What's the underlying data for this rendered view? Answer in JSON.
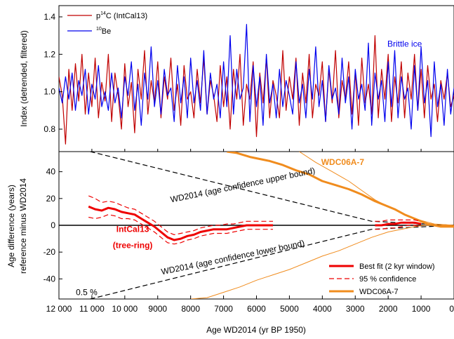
{
  "chart_data": [
    {
      "type": "line",
      "panel": "top",
      "ylabel": "Index (detrended, filtered)",
      "ylim": [
        0.68,
        1.46
      ],
      "yticks": [
        0.8,
        1.0,
        1.2,
        1.4
      ],
      "ytick_labels": [
        "0.8",
        "1.0",
        "1.2",
        "1.4"
      ],
      "xlim": [
        12000,
        0
      ],
      "legend": {
        "position": "top-left",
        "entries": [
          {
            "pre": "p",
            "sup": "14",
            "post": "C (IntCal13)",
            "color": "#c00000"
          },
          {
            "pre": "",
            "sup": "10",
            "post": "Be",
            "color": "#0000ee"
          }
        ]
      },
      "annotation": {
        "text": "Brittle ice",
        "color": "#0000ee",
        "x": 1500,
        "y": 1.24
      },
      "series": [
        {
          "name": "p14C (IntCal13)",
          "color": "#c00000",
          "x": [
            12000,
            11900,
            11800,
            11700,
            11600,
            11500,
            11400,
            11300,
            11200,
            11100,
            11000,
            10900,
            10800,
            10700,
            10600,
            10500,
            10400,
            10300,
            10200,
            10100,
            10000,
            9900,
            9800,
            9700,
            9600,
            9500,
            9400,
            9300,
            9200,
            9100,
            9000,
            8900,
            8800,
            8700,
            8600,
            8500,
            8400,
            8300,
            8200,
            8100,
            8000,
            7900,
            7800,
            7700,
            7600,
            7500,
            7400,
            7300,
            7200,
            7100,
            7000,
            6900,
            6800,
            6700,
            6600,
            6500,
            6400,
            6300,
            6200,
            6100,
            6000,
            5900,
            5800,
            5700,
            5600,
            5500,
            5400,
            5300,
            5200,
            5100,
            5000,
            4900,
            4800,
            4700,
            4600,
            4500,
            4400,
            4300,
            4200,
            4100,
            4000,
            3900,
            3800,
            3700,
            3600,
            3500,
            3400,
            3300,
            3200,
            3100,
            3000,
            2900,
            2800,
            2700,
            2600,
            2500,
            2400,
            2300,
            2200,
            2100,
            2000,
            1900,
            1800,
            1700,
            1600,
            1500,
            1400,
            1300,
            1200,
            1100,
            1000,
            900,
            800,
            700,
            600,
            500,
            400,
            300,
            200,
            100,
            0
          ],
          "values": [
            1.08,
            0.98,
            0.72,
            1.12,
            0.9,
            1.15,
            0.95,
            1.2,
            0.88,
            1.1,
            0.92,
            1.18,
            0.86,
            1.05,
            0.95,
            1.2,
            0.84,
            1.1,
            0.98,
            0.8,
            1.15,
            0.92,
            1.05,
            0.78,
            1.12,
            0.96,
            1.22,
            0.88,
            1.06,
            0.94,
            1.16,
            0.86,
            1.08,
            0.96,
            1.18,
            0.9,
            1.04,
            0.82,
            1.14,
            0.96,
            1.0,
            0.86,
            1.12,
            0.94,
            1.18,
            0.88,
            1.06,
            0.98,
            0.84,
            1.14,
            0.92,
            1.08,
            0.8,
            1.12,
            0.96,
            1.2,
            0.82,
            1.04,
            0.96,
            1.16,
            0.76,
            1.1,
            0.94,
            1.18,
            0.86,
            1.06,
            0.98,
            0.86,
            1.22,
            0.9,
            1.08,
            0.96,
            1.18,
            0.82,
            1.1,
            0.94,
            1.2,
            0.86,
            1.04,
            0.98,
            1.16,
            0.84,
            1.12,
            0.94,
            1.22,
            0.86,
            1.06,
            0.96,
            1.16,
            0.88,
            1.1,
            0.82,
            1.18,
            0.94,
            1.04,
            0.88,
            1.3,
            0.86,
            1.12,
            0.96,
            1.2,
            0.84,
            1.08,
            0.94,
            1.16,
            0.86,
            1.1,
            0.96,
            1.2,
            0.9,
            1.12,
            0.86,
            1.14,
            0.96,
            1.04,
            0.84,
            1.06,
            0.96,
            1.1,
            0.92,
            0.98
          ]
        },
        {
          "name": "10Be",
          "color": "#0000ee",
          "x": [
            12000,
            11900,
            11800,
            11700,
            11600,
            11500,
            11400,
            11300,
            11200,
            11100,
            11000,
            10900,
            10800,
            10700,
            10600,
            10500,
            10400,
            10300,
            10200,
            10100,
            10000,
            9900,
            9800,
            9700,
            9600,
            9500,
            9400,
            9300,
            9200,
            9100,
            9000,
            8900,
            8800,
            8700,
            8600,
            8500,
            8400,
            8300,
            8200,
            8100,
            8000,
            7900,
            7800,
            7700,
            7600,
            7500,
            7400,
            7300,
            7200,
            7100,
            7000,
            6900,
            6800,
            6700,
            6600,
            6500,
            6400,
            6300,
            6200,
            6100,
            6000,
            5900,
            5800,
            5700,
            5600,
            5500,
            5400,
            5300,
            5200,
            5100,
            5000,
            4900,
            4800,
            4700,
            4600,
            4500,
            4400,
            4300,
            4200,
            4100,
            4000,
            3900,
            3800,
            3700,
            3600,
            3500,
            3400,
            3300,
            3200,
            3100,
            3000,
            2900,
            2800,
            2700,
            2600,
            2500,
            2400,
            2300,
            2200,
            2100,
            2000,
            1900,
            1800,
            1700,
            1600,
            1500,
            1400,
            1300,
            1200,
            1100,
            1000,
            900,
            800,
            700,
            600,
            500,
            400,
            300,
            200,
            100,
            0
          ],
          "values": [
            1.02,
            0.94,
            1.08,
            0.96,
            1.1,
            0.9,
            1.06,
            0.98,
            1.12,
            0.88,
            1.04,
            0.96,
            1.14,
            0.92,
            1.0,
            0.9,
            1.1,
            0.94,
            1.02,
            0.86,
            1.08,
            0.98,
            1.16,
            0.9,
            1.04,
            0.82,
            1.1,
            0.96,
            1.24,
            0.92,
            1.06,
            0.88,
            1.12,
            0.98,
            1.02,
            0.84,
            1.14,
            0.94,
            1.08,
            0.86,
            1.18,
            0.94,
            1.06,
            0.9,
            1.22,
            0.88,
            1.1,
            0.96,
            1.04,
            0.86,
            1.16,
            0.92,
            1.3,
            0.88,
            1.12,
            0.96,
            1.02,
            1.36,
            0.84,
            1.14,
            0.92,
            1.08,
            0.82,
            1.2,
            0.94,
            1.04,
            0.86,
            1.12,
            0.92,
            1.06,
            0.98,
            0.88,
            1.16,
            0.94,
            1.04,
            0.86,
            1.12,
            0.96,
            1.24,
            0.92,
            1.06,
            0.84,
            1.14,
            0.96,
            1.02,
            0.88,
            1.18,
            0.94,
            1.08,
            0.8,
            1.12,
            0.96,
            1.04,
            0.9,
            1.26,
            0.82,
            1.1,
            0.96,
            1.06,
            0.84,
            1.16,
            0.92,
            1.22,
            0.86,
            1.08,
            0.96,
            1.02,
            0.8,
            1.14,
            0.9,
            1.24,
            0.94,
            1.06,
            0.76,
            1.16,
            0.92,
            1.04,
            0.82,
            1.12,
            0.88,
            1.02
          ]
        }
      ]
    },
    {
      "type": "line",
      "panel": "bottom",
      "xlabel": "Age WD2014 (yr BP 1950)",
      "ylabel": [
        "Age difference (years)",
        "reference minus WD2014"
      ],
      "xlim": [
        12000,
        0
      ],
      "xticks": [
        12000,
        11000,
        10000,
        9000,
        8000,
        7000,
        6000,
        5000,
        4000,
        3000,
        2000,
        1000,
        0
      ],
      "xtick_labels": [
        "12 000",
        "11 000",
        "10 000",
        "9000",
        "8000",
        "7000",
        "6000",
        "5000",
        "4000",
        "3000",
        "2000",
        "1000",
        "0"
      ],
      "ylim": [
        -55,
        55
      ],
      "yticks": [
        -40,
        -20,
        0,
        20,
        40
      ],
      "ytick_labels": [
        "-40",
        "-20",
        "0",
        "20",
        "40"
      ],
      "legend": {
        "position": "bottom-right",
        "entries": [
          {
            "label": "Best fit (2 kyr window)",
            "color": "#ee0000",
            "style": "solid-thick"
          },
          {
            "label": "95 % confidence",
            "color": "#ee0000",
            "style": "dashed"
          },
          {
            "label": "WDC06A-7",
            "color": "#f08c1e",
            "style": "solid-thick"
          }
        ]
      },
      "annotations": [
        {
          "text": "WD2014 (age confidence upper bound)",
          "x": 6400,
          "y": 28,
          "rotate": -11.5
        },
        {
          "text": "WD2014 (age confidence lower bound)",
          "x": 6700,
          "y": -26,
          "rotate": -11.5
        },
        {
          "text": "WDC06A-7",
          "x": 3380,
          "y": 45,
          "color": "#f08c1e",
          "bold": true
        },
        {
          "text": "IntCal13",
          "x": 9760,
          "y": -5,
          "color": "#ee0000",
          "bold": true
        },
        {
          "text": "(tree-ring)",
          "x": 9760,
          "y": -17,
          "color": "#ee0000",
          "bold": true
        },
        {
          "text": "0.5 %",
          "x": 11160,
          "y": -52,
          "color": "#000000"
        }
      ],
      "series": [
        {
          "name": "WD2014 (age confidence upper bound)",
          "color": "#000000",
          "style": "dashed",
          "x": [
            11050,
            2500,
            0
          ],
          "values": [
            55,
            3,
            0
          ]
        },
        {
          "name": "WD2014 (age confidence lower bound)",
          "color": "#000000",
          "style": "dashed",
          "x": [
            11050,
            2500,
            0
          ],
          "values": [
            -55,
            -3,
            0
          ]
        },
        {
          "name": "WDC06A-7",
          "color": "#f08c1e",
          "style": "solid-thick",
          "x": [
            6900,
            6600,
            6200,
            5600,
            5200,
            4800,
            4400,
            4000,
            3600,
            3200,
            2800,
            2400,
            2100,
            1800,
            1500,
            1200,
            1000,
            800,
            600,
            400,
            0
          ],
          "values": [
            55,
            54,
            51,
            48,
            45,
            41,
            38,
            33,
            30,
            27,
            23,
            18,
            15,
            12,
            8,
            5,
            3,
            1,
            0,
            -1,
            -1
          ]
        },
        {
          "name": "WDC06A-7 upper envelope",
          "color": "#f08c1e",
          "style": "thin",
          "x": [
            4700,
            4200,
            3700,
            3200,
            2800,
            2400,
            2000,
            1600,
            1200,
            900,
            600,
            0
          ],
          "values": [
            55,
            47,
            40,
            33,
            26,
            19,
            14,
            9,
            5,
            3,
            1,
            0
          ]
        },
        {
          "name": "WDC06A-7 lower envelope",
          "color": "#f08c1e",
          "style": "thin",
          "x": [
            8000,
            7500,
            7000,
            6500,
            6000,
            5500,
            5000,
            4500,
            4000,
            3500,
            3000,
            2500,
            2000,
            1600,
            1200,
            900,
            600,
            0
          ],
          "values": [
            -55,
            -54,
            -50,
            -46,
            -41,
            -37,
            -33,
            -28,
            -23,
            -19,
            -14,
            -9,
            -5,
            -3,
            -1,
            0,
            0,
            0
          ]
        },
        {
          "name": "Best fit (2 kyr window)",
          "color": "#ee0000",
          "style": "solid-thick",
          "x": [
            11100,
            10900,
            10700,
            10500,
            10300,
            10100,
            9900,
            9700,
            9500,
            9300,
            9100,
            8900,
            8700,
            8500,
            8300,
            8100,
            7900,
            7700,
            7500,
            7300,
            7100,
            6900,
            6700,
            6500,
            6300,
            6100,
            5900,
            5700,
            5500
          ],
          "values": [
            14,
            12,
            11,
            13,
            12,
            10,
            9,
            8,
            5,
            2,
            -1,
            -5,
            -9,
            -11,
            -10,
            -8,
            -7,
            -5,
            -4,
            -3,
            -3,
            -3,
            -2,
            -1,
            0,
            0,
            0,
            0,
            0
          ]
        },
        {
          "name": "95 % confidence upper",
          "color": "#ee0000",
          "style": "dashed",
          "x": [
            11100,
            10900,
            10700,
            10500,
            10300,
            10100,
            9900,
            9700,
            9500,
            9300,
            9100,
            8900,
            8700,
            8500,
            8300,
            8100,
            7900,
            7700,
            7500,
            7300,
            7100,
            6900,
            6700,
            6500,
            6300,
            6100,
            5900,
            5700,
            5500
          ],
          "values": [
            22,
            20,
            17,
            18,
            17,
            15,
            13,
            12,
            9,
            6,
            3,
            -1,
            -5,
            -7,
            -6,
            -5,
            -4,
            -2,
            -1,
            0,
            0,
            1,
            1,
            2,
            3,
            3,
            3,
            3,
            3
          ]
        },
        {
          "name": "95 % confidence lower",
          "color": "#ee0000",
          "style": "dashed",
          "x": [
            11100,
            10900,
            10700,
            10500,
            10300,
            10100,
            9900,
            9700,
            9500,
            9300,
            9100,
            8900,
            8700,
            8500,
            8300,
            8100,
            7900,
            7700,
            7500,
            7300,
            7100,
            6900,
            6700,
            6500,
            6300,
            6100,
            5900,
            5700,
            5500
          ],
          "values": [
            6,
            5,
            6,
            8,
            7,
            5,
            5,
            4,
            1,
            -2,
            -5,
            -9,
            -13,
            -14,
            -13,
            -11,
            -10,
            -8,
            -7,
            -6,
            -6,
            -6,
            -5,
            -4,
            -3,
            -3,
            -3,
            -3,
            -3
          ]
        },
        {
          "name": "Best fit recent segment",
          "color": "#ee0000",
          "style": "solid-thick",
          "x": [
            2400,
            2200,
            2000,
            1800,
            1600,
            1400,
            1200,
            1000
          ],
          "values": [
            0,
            0,
            1,
            1,
            2,
            2,
            2,
            1
          ]
        },
        {
          "name": "95 % confidence recent upper",
          "color": "#ee0000",
          "style": "dashed",
          "x": [
            2400,
            2200,
            2000,
            1800,
            1600,
            1400,
            1200,
            1000
          ],
          "values": [
            3,
            3,
            4,
            4,
            4,
            4,
            4,
            3
          ]
        },
        {
          "name": "95 % confidence recent lower",
          "color": "#ee0000",
          "style": "dashed",
          "x": [
            2400,
            2200,
            2000,
            1800,
            1600,
            1400,
            1200,
            1000
          ],
          "values": [
            -3,
            -3,
            -2,
            -2,
            -1,
            0,
            0,
            -1
          ]
        }
      ]
    }
  ]
}
